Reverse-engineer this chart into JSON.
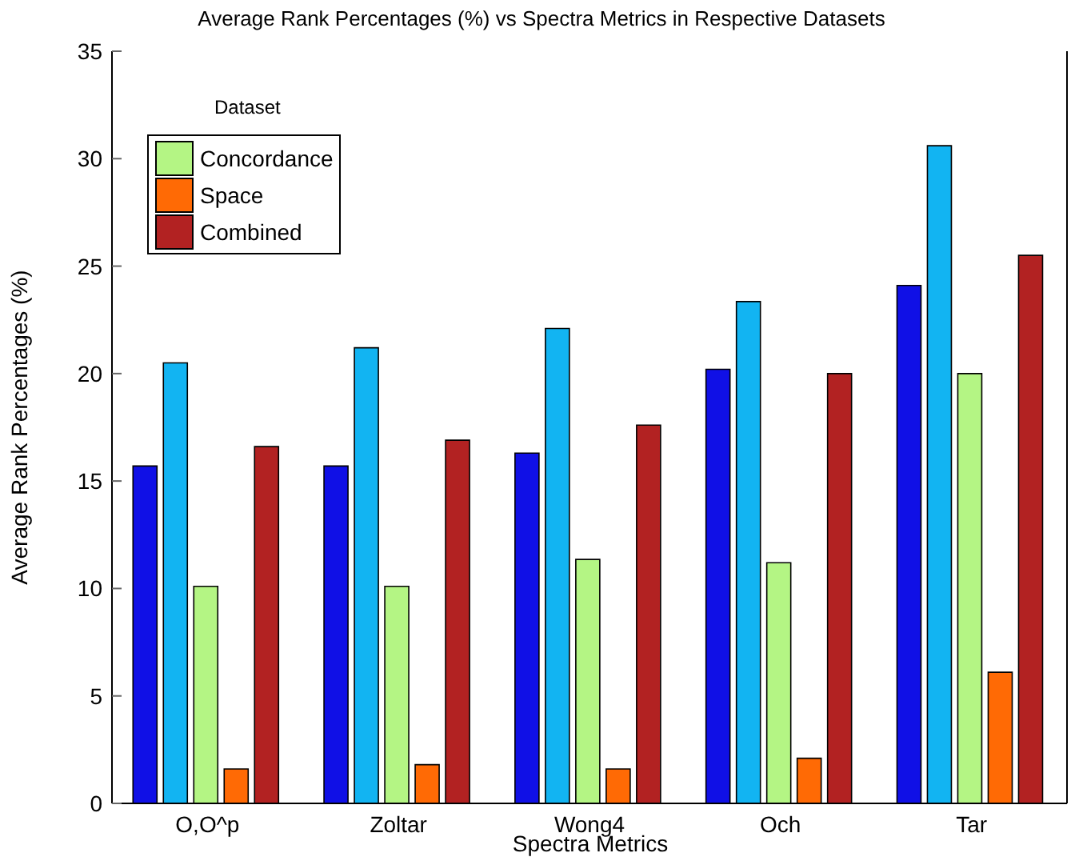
{
  "chart_data": {
    "type": "bar",
    "title": "Average Rank Percentages (%) vs Spectra Metrics in Respective Datasets",
    "xlabel": "Spectra Metrics",
    "ylabel": "Average Rank Percentages (%)",
    "legend_title": "Dataset",
    "categories": [
      "O,O^p",
      "Zoltar",
      "Wong4",
      "Och",
      "Tar"
    ],
    "series": [
      {
        "color": "#1010e6",
        "values": [
          15.7,
          15.7,
          16.3,
          20.2,
          24.1
        ]
      },
      {
        "color": "#12b4f2",
        "values": [
          20.5,
          21.2,
          22.1,
          23.35,
          30.6
        ]
      },
      {
        "name": "Concordance",
        "color": "#b4f584",
        "values": [
          10.1,
          10.1,
          11.35,
          11.2,
          20.0
        ]
      },
      {
        "name": "Space",
        "color": "#ff6a05",
        "values": [
          1.6,
          1.8,
          1.6,
          2.1,
          6.1
        ]
      },
      {
        "name": "Combined",
        "color": "#b22222",
        "values": [
          16.6,
          16.9,
          17.6,
          20.0,
          25.5
        ]
      }
    ],
    "ylim": [
      0,
      35
    ],
    "yticks": [
      0,
      5,
      10,
      15,
      20,
      25,
      30,
      35
    ],
    "grid": false,
    "legend": "top left"
  }
}
